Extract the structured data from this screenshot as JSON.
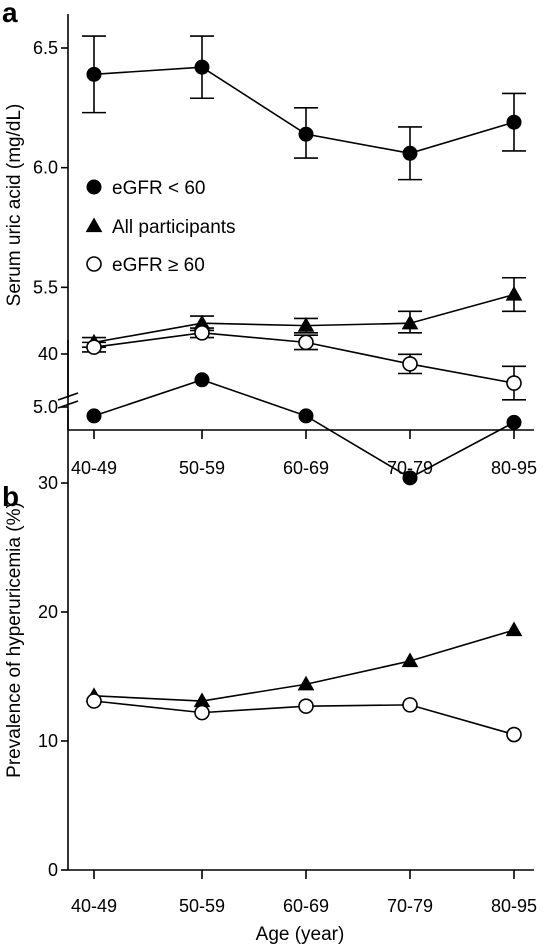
{
  "chart_data": [
    {
      "panel_label": "a",
      "type": "line",
      "categories": [
        "40-49",
        "50-59",
        "60-69",
        "70-79",
        "80-95"
      ],
      "ylabel": "Serum uric acid (mg/dL)",
      "xlabel": "",
      "ylim": [
        5.0,
        6.6
      ],
      "y_axis_break": true,
      "yticks": [
        "5.0",
        "5.5",
        "6.0",
        "6.5"
      ],
      "legend_position": "left",
      "series": [
        {
          "name": "eGFR < 60",
          "marker": "filled-circle",
          "values": [
            6.39,
            6.42,
            6.14,
            6.06,
            6.19
          ],
          "err_low": [
            6.23,
            6.29,
            6.04,
            5.95,
            6.07
          ],
          "err_high": [
            6.55,
            6.55,
            6.25,
            6.17,
            6.31
          ]
        },
        {
          "name": "All participants",
          "marker": "filled-triangle",
          "values": [
            5.27,
            5.35,
            5.34,
            5.35,
            5.47
          ],
          "err_low": [
            5.25,
            5.32,
            5.31,
            5.31,
            5.4
          ],
          "err_high": [
            5.29,
            5.38,
            5.37,
            5.4,
            5.54
          ]
        },
        {
          "name": "eGFR ≥ 60",
          "marker": "open-circle",
          "values": [
            5.25,
            5.31,
            5.27,
            5.18,
            5.1
          ],
          "err_low": [
            5.23,
            5.29,
            5.24,
            5.14,
            5.03
          ],
          "err_high": [
            5.27,
            5.33,
            5.3,
            5.22,
            5.17
          ]
        }
      ]
    },
    {
      "panel_label": "b",
      "type": "line",
      "categories": [
        "40-49",
        "50-59",
        "60-69",
        "70-79",
        "80-95"
      ],
      "ylabel": "Prevalence of  hyperuricemia (%)",
      "xlabel": "Age (year)",
      "ylim": [
        0,
        40
      ],
      "yticks": [
        "0",
        "10",
        "20",
        "30",
        "40"
      ],
      "series": [
        {
          "marker": "filled-circle",
          "values": [
            35.2,
            38.0,
            35.2,
            30.4,
            34.7
          ]
        },
        {
          "marker": "filled-triangle",
          "values": [
            13.5,
            13.1,
            14.4,
            16.2,
            18.6
          ]
        },
        {
          "marker": "open-circle",
          "values": [
            13.1,
            12.2,
            12.7,
            12.8,
            10.5
          ]
        }
      ]
    }
  ]
}
